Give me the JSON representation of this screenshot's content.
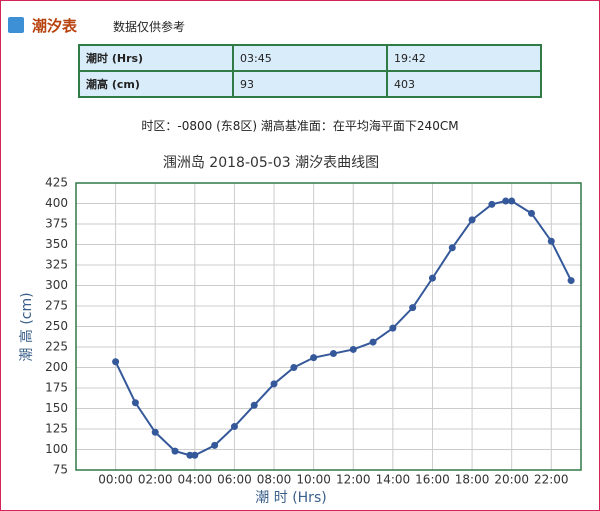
{
  "header": {
    "title": "潮汐表",
    "note": "数据仅供参考"
  },
  "table": {
    "rows": [
      [
        "潮时 (Hrs)",
        "03:45",
        "19:42"
      ],
      [
        "潮高 (cm)",
        "93",
        "403"
      ]
    ]
  },
  "info": "时区：-0800 (东8区) 潮高基准面：在平均海平面下240CM",
  "chart_data": {
    "type": "line",
    "title": "涠洲岛 2018-05-03 潮汐表曲线图",
    "x_label": "潮 时 (Hrs)",
    "y_label": "潮 高 (cm)",
    "x": [
      0,
      1,
      2,
      3,
      3.75,
      4,
      5,
      6,
      7,
      8,
      9,
      10,
      11,
      12,
      13,
      14,
      15,
      16,
      17,
      18,
      19,
      19.7,
      20,
      21,
      22,
      23
    ],
    "series": [
      {
        "name": "潮高",
        "color": "#34589a",
        "values": [
          207,
          157,
          121,
          98,
          93,
          93,
          105,
          128,
          154,
          180,
          200,
          212,
          217,
          222,
          231,
          248,
          273,
          309,
          346,
          380,
          399,
          403,
          403,
          388,
          354,
          306
        ]
      }
    ],
    "xlim": [
      -2,
      23.5
    ],
    "xticks": [
      {
        "value": 0,
        "label": "00:00"
      },
      {
        "value": 2,
        "label": "02:00"
      },
      {
        "value": 4,
        "label": "04:00"
      },
      {
        "value": 6,
        "label": "06:00"
      },
      {
        "value": 8,
        "label": "08:00"
      },
      {
        "value": 10,
        "label": "10:00"
      },
      {
        "value": 12,
        "label": "12:00"
      },
      {
        "value": 14,
        "label": "14:00"
      },
      {
        "value": 16,
        "label": "16:00"
      },
      {
        "value": 18,
        "label": "18:00"
      },
      {
        "value": 20,
        "label": "20:00"
      },
      {
        "value": 22,
        "label": "22:00"
      }
    ],
    "ylim": [
      75,
      425
    ],
    "yticks": [
      75,
      100,
      125,
      150,
      175,
      200,
      225,
      250,
      275,
      300,
      325,
      350,
      375,
      400,
      425
    ],
    "grid": true
  }
}
